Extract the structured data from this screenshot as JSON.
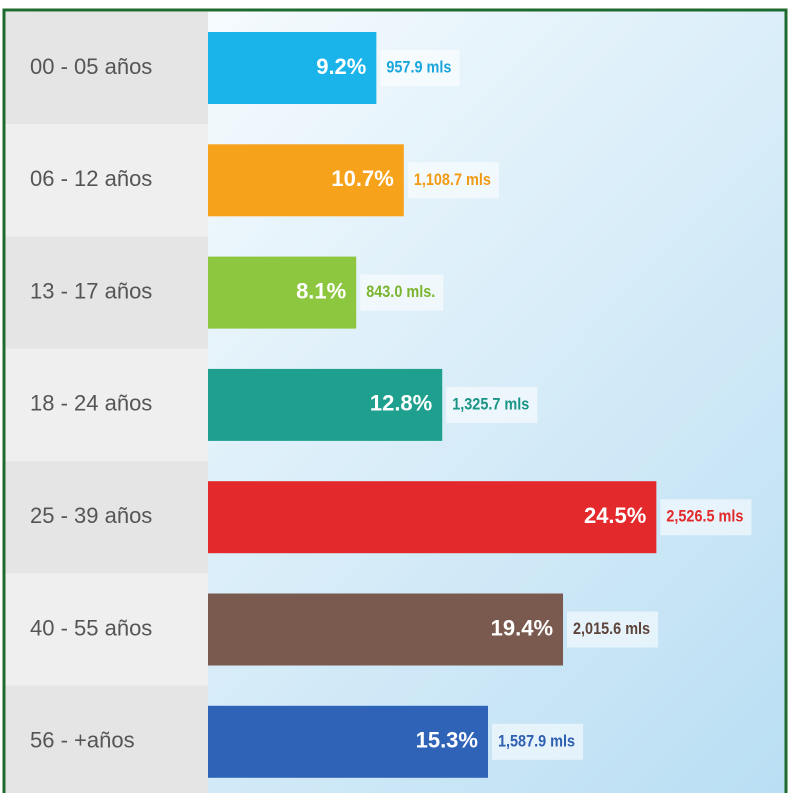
{
  "chart_data": {
    "type": "hbar",
    "categories": [
      "00 - 05 años",
      "06 - 12 años",
      "13 - 17 años",
      "18 - 24 años",
      "25 - 39 años",
      "40 - 55 años",
      "56 - +años"
    ],
    "values": [
      9.2,
      10.7,
      8.1,
      12.8,
      24.5,
      19.4,
      15.3
    ],
    "value_labels": [
      "9.2%",
      "10.7%",
      "8.1%",
      "12.8%",
      "24.5%",
      "19.4%",
      "15.3%"
    ],
    "populations": [
      957.9,
      1108.7,
      843.0,
      1325.7,
      2526.5,
      2015.6,
      1587.9
    ],
    "population_labels": [
      "957.9 mls",
      "1,108.7 mls",
      "843.0 mls.",
      "1,325.7 mls",
      "2,526.5 mls",
      "2,015.6 mls",
      "1,587.9 mls"
    ],
    "colors": [
      "#1ab3ea",
      "#f7a21b",
      "#8dc63f",
      "#1fa08e",
      "#e3292b",
      "#7a5a4e",
      "#2e63b8"
    ]
  }
}
